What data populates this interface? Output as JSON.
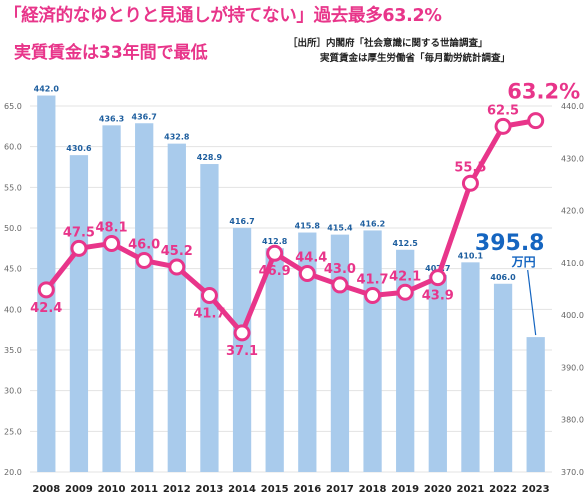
{
  "title": "「経済的なゆとりと見通しが持てない」過去最多63.2%",
  "subtitle": "実質賃金は33年間で最低",
  "source_line1": "［出所］内閣府「社会意識に関する世論調査」",
  "source_line2": "実質賃金は厚生労働省「毎月勤労統計調査」",
  "chart_data": {
    "type": "bar+line",
    "categories": [
      "2008",
      "2009",
      "2010",
      "2011",
      "2012",
      "2013",
      "2014",
      "2015",
      "2016",
      "2017",
      "2018",
      "2019",
      "2020",
      "2021",
      "2022",
      "2023"
    ],
    "bars": {
      "values": [
        442.0,
        430.6,
        436.3,
        436.7,
        432.8,
        428.9,
        416.7,
        412.8,
        415.8,
        415.4,
        416.2,
        412.5,
        407.7,
        410.1,
        406.0,
        395.8
      ],
      "labels": [
        "442.0",
        "430.6",
        "436.3",
        "436.7",
        "432.8",
        "428.9",
        "416.7",
        "412.8",
        "415.8",
        "415.4",
        "416.2",
        "412.5",
        "407.7",
        "410.1",
        "406.0",
        "395.8"
      ],
      "axis": "right",
      "ylim": [
        370,
        440
      ],
      "color": "#a9cbec"
    },
    "line": {
      "values": [
        42.4,
        47.5,
        48.1,
        46.0,
        45.2,
        41.7,
        37.1,
        46.9,
        44.4,
        43.0,
        41.7,
        42.1,
        43.9,
        55.5,
        62.5,
        63.2
      ],
      "labels": [
        "42.4",
        "47.5",
        "48.1",
        "46.0",
        "45.2",
        "41.7",
        "37.1",
        "46.9",
        "44.4",
        "43.0",
        "41.7",
        "42.1",
        "43.9",
        "55.5",
        "62.5",
        "63.2%"
      ],
      "axis": "left",
      "ylim": [
        20,
        65
      ],
      "color": "#e8358a"
    },
    "left_ticks": [
      "20.0",
      "25.0",
      "30.0",
      "35.0",
      "40.0",
      "45.0",
      "50.0",
      "55.0",
      "60.0",
      "65.0"
    ],
    "right_ticks": [
      "370.0",
      "380.0",
      "390.0",
      "400.0",
      "410.0",
      "420.0",
      "430.0",
      "440.0"
    ],
    "wage_callout": "395.8",
    "wage_unit": "万円"
  }
}
